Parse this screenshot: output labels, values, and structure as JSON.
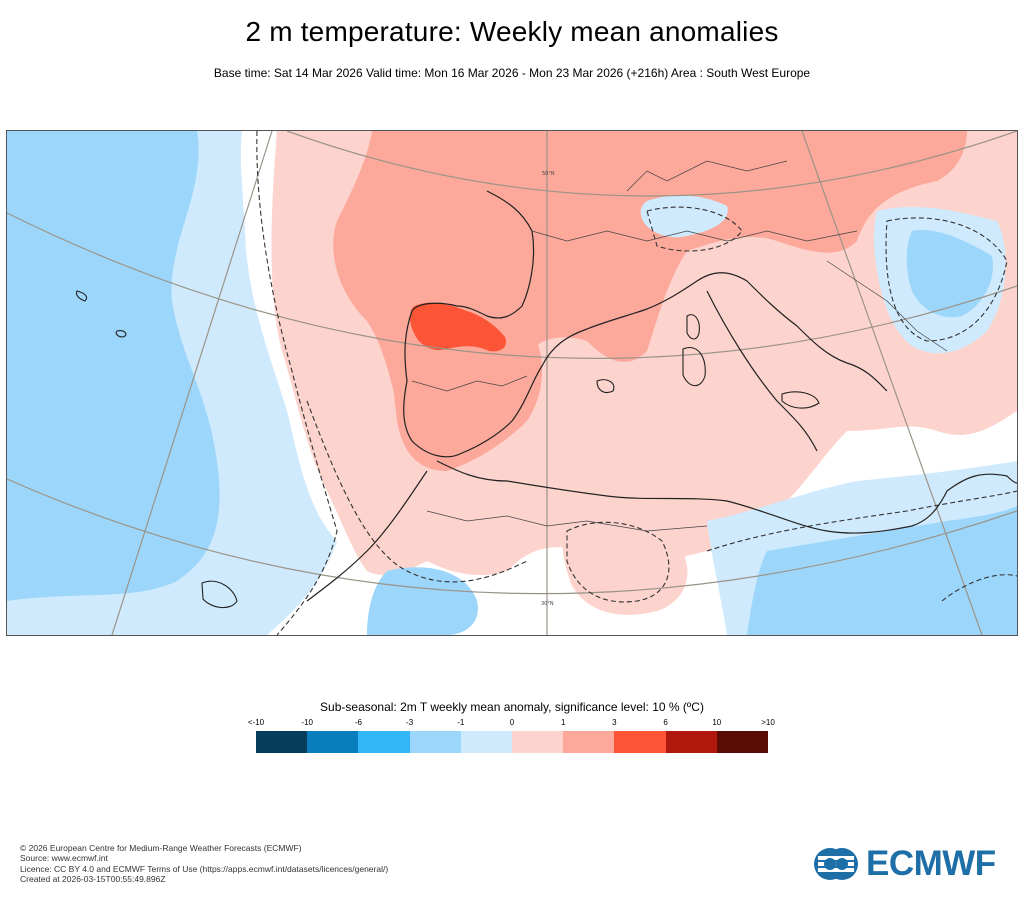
{
  "header": {
    "title": "2 m temperature: Weekly mean anomalies",
    "subtitle": "Base time: Sat 14 Mar 2026 Valid time: Mon 16 Mar 2026 - Mon 23 Mar 2026 (+216h) Area : South West Europe"
  },
  "map": {
    "area": "South West Europe",
    "lat_labels": [
      "50°N",
      "30°N"
    ]
  },
  "legend": {
    "title": "Sub-seasonal: 2m T weekly mean anomaly, significance level: 10 % (ºC)",
    "ticks": [
      "<-10",
      "-10",
      "-6",
      "-3",
      "-1",
      "0",
      "1",
      "3",
      "6",
      "10",
      ">10"
    ],
    "colors": [
      "#063c5c",
      "#0a7dbc",
      "#32b6f8",
      "#9dd6fb",
      "#cfeafc",
      "#fdd3cd",
      "#fca89a",
      "#fb5437",
      "#b0180d",
      "#5b0c06"
    ]
  },
  "footer": {
    "copyright": "© 2026 European Centre for Medium-Range Weather Forecasts (ECMWF)",
    "source": "Source: www.ecmwf.int",
    "licence": "Licence: CC BY 4.0 and ECMWF Terms of Use (https://apps.ecmwf.int/datasets/licences/general/)",
    "created": "Created at 2026-03-15T00:55:49.896Z"
  },
  "logo": {
    "text": "ECMWF",
    "color": "#1e6fa8"
  }
}
